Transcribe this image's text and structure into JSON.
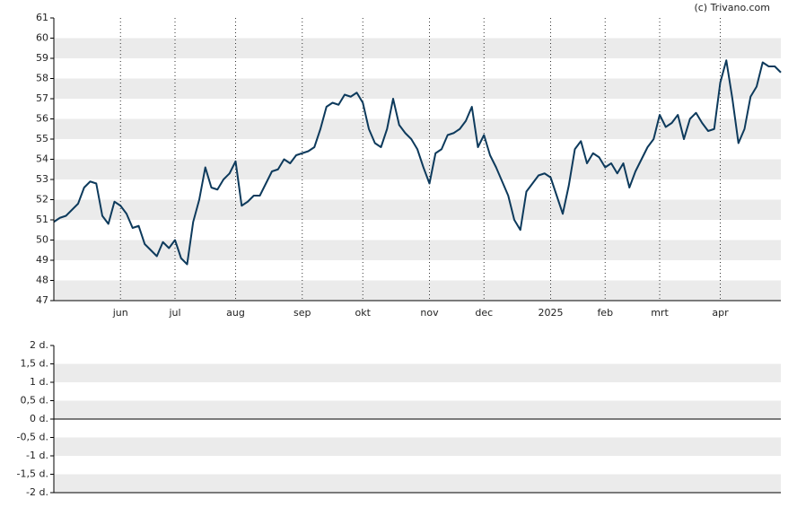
{
  "chart_data": [
    {
      "type": "line",
      "source": "(c) Trivano.com",
      "categories": [
        null,
        null,
        null,
        null,
        null,
        null,
        null,
        null,
        null,
        null,
        null,
        "jun",
        null,
        null,
        null,
        null,
        null,
        null,
        null,
        null,
        "jul",
        null,
        null,
        null,
        null,
        null,
        null,
        null,
        null,
        null,
        "aug",
        null,
        null,
        null,
        null,
        null,
        null,
        null,
        null,
        null,
        null,
        "sep",
        null,
        null,
        null,
        null,
        null,
        null,
        null,
        null,
        null,
        "okt",
        null,
        null,
        null,
        null,
        null,
        null,
        null,
        null,
        null,
        null,
        "nov",
        null,
        null,
        null,
        null,
        null,
        null,
        null,
        null,
        "dec",
        null,
        null,
        null,
        null,
        null,
        null,
        null,
        null,
        null,
        null,
        "2025",
        null,
        null,
        null,
        null,
        null,
        null,
        null,
        null,
        "feb",
        null,
        null,
        null,
        null,
        null,
        null,
        null,
        null,
        "mrt",
        null,
        null,
        null,
        null,
        null,
        null,
        null,
        null,
        null,
        "apr",
        null,
        null,
        null,
        null,
        null,
        null,
        null,
        null,
        null,
        null
      ],
      "series": [
        {
          "color": "#0d3a5c",
          "values": [
            50.9,
            51.1,
            51.2,
            51.5,
            51.8,
            52.6,
            52.9,
            52.8,
            51.2,
            50.8,
            51.9,
            51.7,
            51.3,
            50.6,
            50.7,
            49.8,
            49.5,
            49.2,
            49.9,
            49.6,
            50.0,
            49.1,
            48.8,
            50.9,
            52.0,
            53.6,
            52.6,
            52.5,
            53.0,
            53.3,
            53.9,
            51.7,
            51.9,
            52.2,
            52.2,
            52.8,
            53.4,
            53.5,
            54.0,
            53.8,
            54.2,
            54.3,
            54.4,
            54.6,
            55.5,
            56.6,
            56.8,
            56.7,
            57.2,
            57.1,
            57.3,
            56.8,
            55.5,
            54.8,
            54.6,
            55.5,
            57.0,
            55.7,
            55.3,
            55.0,
            54.5,
            53.6,
            52.8,
            54.3,
            54.5,
            55.2,
            55.3,
            55.5,
            55.9,
            56.6,
            54.6,
            55.2,
            54.2,
            53.6,
            52.9,
            52.2,
            51.0,
            50.5,
            52.4,
            52.8,
            53.2,
            53.3,
            53.1,
            52.2,
            51.3,
            52.7,
            54.5,
            54.9,
            53.8,
            54.3,
            54.1,
            53.6,
            53.8,
            53.3,
            53.8,
            52.6,
            53.4,
            54.0,
            54.6,
            55.0,
            56.2,
            55.6,
            55.8,
            56.2,
            55.0,
            56.0,
            56.3,
            55.8,
            55.4,
            55.5,
            57.8,
            58.9,
            57.0,
            54.8,
            55.5,
            57.1,
            57.6,
            58.8,
            58.6,
            58.6,
            58.3
          ]
        }
      ],
      "ylim": [
        47,
        61
      ],
      "yticks": [
        47,
        48,
        49,
        50,
        51,
        52,
        53,
        54,
        55,
        56,
        57,
        58,
        59,
        60,
        61
      ],
      "grid": true
    },
    {
      "type": "bar",
      "ylim": [
        -2,
        2
      ],
      "yticks": [
        {
          "value": -2,
          "label": "-2 d."
        },
        {
          "value": -1.5,
          "label": "-1,5 d."
        },
        {
          "value": -1,
          "label": "-1 d."
        },
        {
          "value": -0.5,
          "label": "-0,5 d."
        },
        {
          "value": 0,
          "label": "0 d."
        },
        {
          "value": 0.5,
          "label": "0,5 d."
        },
        {
          "value": 1,
          "label": "1 d."
        },
        {
          "value": 1.5,
          "label": "1,5 d."
        },
        {
          "value": 2,
          "label": "2 d."
        }
      ],
      "grid": true
    }
  ]
}
